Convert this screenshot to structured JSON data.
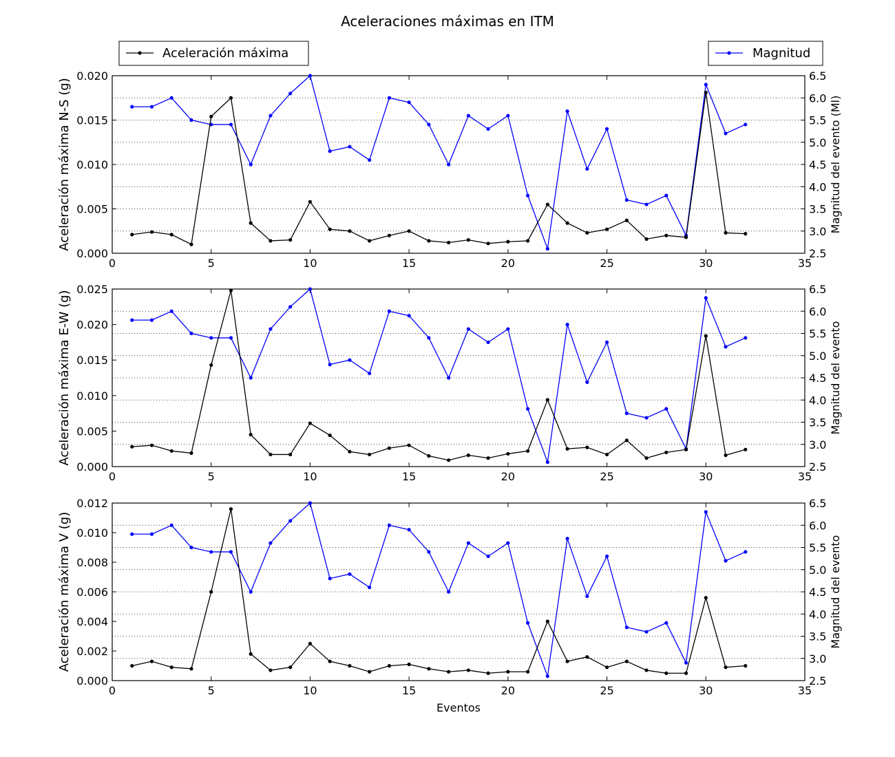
{
  "chart_data": {
    "type": "line",
    "title": "Aceleraciones máximas en ITM",
    "xlabel": "Eventos",
    "xlim": [
      0,
      35
    ],
    "xticks": [
      0,
      5,
      10,
      15,
      20,
      25,
      30,
      35
    ],
    "legend_left": "Aceleración máxima",
    "legend_right": "Magnitud",
    "colors": {
      "aceleracion": "#000000",
      "magnitud": "#0000ff",
      "grid": "#000000"
    },
    "x": [
      1,
      2,
      3,
      4,
      5,
      6,
      7,
      8,
      9,
      10,
      11,
      12,
      13,
      14,
      15,
      16,
      17,
      18,
      19,
      20,
      21,
      22,
      23,
      24,
      25,
      26,
      27,
      28,
      29,
      30,
      31,
      32
    ],
    "magnitud": [
      5.8,
      5.8,
      6.0,
      5.5,
      5.4,
      5.4,
      4.5,
      5.6,
      6.1,
      6.5,
      4.8,
      4.9,
      4.6,
      6.0,
      5.9,
      5.4,
      4.5,
      5.6,
      5.3,
      5.6,
      3.8,
      2.6,
      5.7,
      4.4,
      5.3,
      3.7,
      3.6,
      3.8,
      2.9,
      6.3,
      5.2,
      5.4
    ],
    "panels": [
      {
        "id": "ns",
        "ylabel_left": "Aceleración máxima N-S (g)",
        "ylabel_right": "Magnitud del evento (Ml)",
        "ylim_left": [
          0,
          0.02
        ],
        "yticks_left": [
          "0.000",
          "0.005",
          "0.010",
          "0.015",
          "0.020"
        ],
        "ylim_right": [
          2.5,
          6.5
        ],
        "yticks_right": [
          "2.5",
          "3.0",
          "3.5",
          "4.0",
          "4.5",
          "5.0",
          "5.5",
          "6.0",
          "6.5"
        ],
        "aceleracion": [
          0.0021,
          0.0024,
          0.0021,
          0.001,
          0.0154,
          0.0175,
          0.0034,
          0.0014,
          0.0015,
          0.0058,
          0.0027,
          0.0025,
          0.0014,
          0.002,
          0.0025,
          0.0014,
          0.0012,
          0.0015,
          0.0011,
          0.0013,
          0.0014,
          0.0055,
          0.0034,
          0.0023,
          0.0027,
          0.0037,
          0.0016,
          0.002,
          0.0018,
          0.0181,
          0.0023,
          0.0022
        ]
      },
      {
        "id": "ew",
        "ylabel_left": "Aceleración máxima E-W (g)",
        "ylabel_right": "Magnitud del evento",
        "ylim_left": [
          0,
          0.025
        ],
        "yticks_left": [
          "0.000",
          "0.005",
          "0.010",
          "0.015",
          "0.020",
          "0.025"
        ],
        "ylim_right": [
          2.5,
          6.5
        ],
        "yticks_right": [
          "2.5",
          "3.0",
          "3.5",
          "4.0",
          "4.5",
          "5.0",
          "5.5",
          "6.0",
          "6.5"
        ],
        "aceleracion": [
          0.0028,
          0.003,
          0.0022,
          0.0019,
          0.0143,
          0.0248,
          0.0045,
          0.0017,
          0.0017,
          0.0061,
          0.0044,
          0.0021,
          0.0017,
          0.0026,
          0.003,
          0.0015,
          0.0009,
          0.0016,
          0.0012,
          0.0018,
          0.0022,
          0.0094,
          0.0025,
          0.0027,
          0.0017,
          0.0037,
          0.0012,
          0.002,
          0.0024,
          0.0184,
          0.0016,
          0.0024
        ]
      },
      {
        "id": "v",
        "ylabel_left": "Aceleración máxima V (g)",
        "ylabel_right": "Magnitud del evento",
        "ylim_left": [
          0,
          0.012
        ],
        "yticks_left": [
          "0.000",
          "0.002",
          "0.004",
          "0.006",
          "0.008",
          "0.010",
          "0.012"
        ],
        "ylim_right": [
          2.5,
          6.5
        ],
        "yticks_right": [
          "2.5",
          "3.0",
          "3.5",
          "4.0",
          "4.5",
          "5.0",
          "5.5",
          "6.0",
          "6.5"
        ],
        "aceleracion": [
          0.001,
          0.0013,
          0.0009,
          0.0008,
          0.006,
          0.0116,
          0.0018,
          0.0007,
          0.0009,
          0.0025,
          0.0013,
          0.001,
          0.0006,
          0.001,
          0.0011,
          0.0008,
          0.0006,
          0.0007,
          0.0005,
          0.0006,
          0.0006,
          0.004,
          0.0013,
          0.0016,
          0.0009,
          0.0013,
          0.0007,
          0.0005,
          0.0005,
          0.0056,
          0.0009,
          0.001
        ]
      }
    ]
  }
}
